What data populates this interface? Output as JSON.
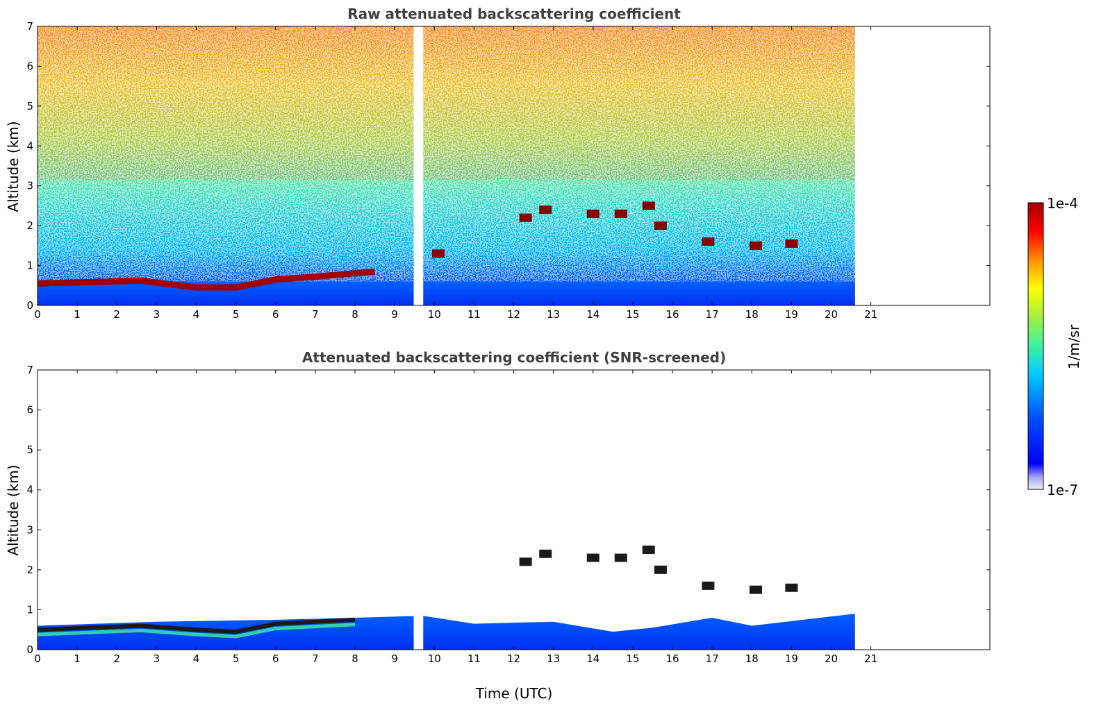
{
  "colors": {
    "colormap": [
      "#eeeef8",
      "#aaaaf0",
      "#0000ff",
      "#0050ff",
      "#00a0ff",
      "#00e0e0",
      "#40f0a0",
      "#a0f040",
      "#ffff00",
      "#ffb000",
      "#ff6000",
      "#ff0000",
      "#a00000"
    ],
    "cloud_core": "#8b0000",
    "background": "#ffffff"
  },
  "colorbar": {
    "label": "1/m/sr",
    "max_label": "1e-4",
    "min_label": "1e-7",
    "max_value": 0.0001,
    "min_value": 1e-07,
    "scale": "log"
  },
  "chart_data": [
    {
      "type": "heatmap",
      "title": "Raw attenuated backscattering coefficient",
      "xlabel": "",
      "ylabel": "Altitude (km)",
      "xlim": [
        0,
        24
      ],
      "ylim": [
        0,
        7
      ],
      "xticks": [
        "0",
        "1",
        "2",
        "3",
        "4",
        "5",
        "6",
        "7",
        "8",
        "9",
        "10",
        "11",
        "12",
        "13",
        "14",
        "15",
        "16",
        "17",
        "18",
        "19",
        "20",
        "21"
      ],
      "yticks": [
        "0",
        "1",
        "2",
        "3",
        "4",
        "5",
        "6",
        "7"
      ],
      "data_extent_hours": [
        0,
        20.6
      ],
      "gap_hours": [
        9.48,
        9.72
      ],
      "screened": false,
      "features": {
        "boundary_layer_top_km": [
          [
            0,
            0.55
          ],
          [
            2.6,
            0.62
          ],
          [
            4,
            0.45
          ],
          [
            5,
            0.45
          ],
          [
            6,
            0.65
          ],
          [
            7,
            0.72
          ],
          [
            8.5,
            0.85
          ]
        ],
        "elevated_cloud_layers_km": [
          [
            10.1,
            1.3
          ],
          [
            12.3,
            2.2
          ],
          [
            12.8,
            2.4
          ],
          [
            14.0,
            2.3
          ],
          [
            14.7,
            2.3
          ],
          [
            15.4,
            2.5
          ],
          [
            15.7,
            2.0
          ],
          [
            16.9,
            1.6
          ],
          [
            18.1,
            1.5
          ],
          [
            19.0,
            1.55
          ]
        ]
      }
    },
    {
      "type": "heatmap",
      "title": "Attenuated backscattering coefficient (SNR-screened)",
      "xlabel": "Time (UTC)",
      "ylabel": "Altitude (km)",
      "xlim": [
        0,
        24
      ],
      "ylim": [
        0,
        7
      ],
      "xticks": [
        "0",
        "1",
        "2",
        "3",
        "4",
        "5",
        "6",
        "7",
        "8",
        "9",
        "10",
        "11",
        "12",
        "13",
        "14",
        "15",
        "16",
        "17",
        "18",
        "19",
        "20",
        "21"
      ],
      "yticks": [
        "0",
        "1",
        "2",
        "3",
        "4",
        "5",
        "6",
        "7"
      ],
      "data_extent_hours": [
        0,
        20.6
      ],
      "gap_hours": [
        9.48,
        9.72
      ],
      "screened": true,
      "features": {
        "signal_top_km": [
          [
            0,
            0.6
          ],
          [
            3,
            0.7
          ],
          [
            6,
            0.75
          ],
          [
            8,
            0.8
          ],
          [
            9.7,
            0.85
          ],
          [
            11,
            0.65
          ],
          [
            13,
            0.7
          ],
          [
            14.5,
            0.45
          ],
          [
            15.5,
            0.55
          ],
          [
            17,
            0.8
          ],
          [
            18,
            0.6
          ],
          [
            20.6,
            0.9
          ]
        ],
        "elevated_cloud_layers_km": [
          [
            12.3,
            2.2
          ],
          [
            12.8,
            2.4
          ],
          [
            14.0,
            2.3
          ],
          [
            14.7,
            2.3
          ],
          [
            15.4,
            2.5
          ],
          [
            15.7,
            2.0
          ],
          [
            16.9,
            1.6
          ],
          [
            18.1,
            1.5
          ],
          [
            19.0,
            1.55
          ]
        ]
      }
    }
  ]
}
